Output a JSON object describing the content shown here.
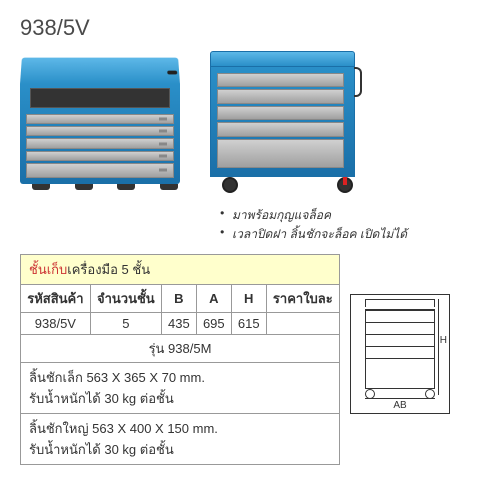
{
  "model_title": "938/5V",
  "bullets": [
    "มาพร้อมกุญแจล็อค",
    "เวลาปิดฝา ลิ้นชักจะล็อค เปิดไม่ได้"
  ],
  "table": {
    "title_prefix": "ชั้นเก็บ",
    "title_rest": "เครื่องมือ 5 ชั้น",
    "headers": [
      "รหัสสินค้า",
      "จำนวนชั้น",
      "B",
      "A",
      "H",
      "ราคาใบละ"
    ],
    "row": {
      "code": "938/5V",
      "tiers": "5",
      "B": "435",
      "A": "695",
      "H": "615",
      "price": ""
    },
    "variant_label": "รุ่น 938/5M",
    "details": [
      "ลิ้นชักเล็ก 563 X 365 X 70 mm.",
      "รับน้ำหนักได้ 30 kg ต่อชั้น",
      "ลิ้นชักใหญ่ 563 X 400 X 150 mm.",
      "รับน้ำหนักได้ 30 kg ต่อชั้น"
    ]
  },
  "diagram": {
    "label_h": "H",
    "label_ab": "AB"
  },
  "colors": {
    "toolbox_blue": "#2a8fc8",
    "toolbox_blue_light": "#5db8e8",
    "drawer_gray": "#b8b8b8",
    "title_yellow_bg": "#ffffcc",
    "title_red": "#cc3333",
    "border_gray": "#999999"
  }
}
